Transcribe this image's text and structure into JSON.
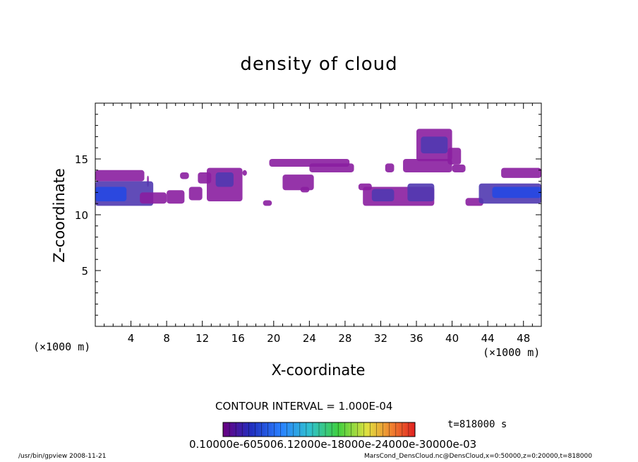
{
  "chart_data": {
    "type": "heatmap",
    "title": "density of cloud",
    "xlabel": "X-coordinate",
    "ylabel": "Z-coordinate",
    "x_unit_left": "(×1000 m)",
    "x_unit_right": "(×1000 m)",
    "xlim": [
      0,
      50
    ],
    "ylim": [
      0,
      20
    ],
    "xticks": [
      4,
      8,
      12,
      16,
      20,
      24,
      28,
      32,
      36,
      40,
      44,
      48
    ],
    "yticks": [
      5,
      10,
      15
    ],
    "contour_interval": "CONTOUR INTERVAL = 1.000E-04",
    "time": "t=818000 s",
    "colorbar_labels": "0.10000e-605006.12000e-18000e-24000e-30000e-03",
    "colors": {
      "low": "#8a1ea0",
      "mid": "#5038b0",
      "high": "#2848e0",
      "peak": "#2a6cf0",
      "grid": "#000000",
      "background": "#ffffff"
    },
    "cloud_regions": [
      {
        "x": [
          0.0,
          5.5
        ],
        "z": [
          13.0,
          14.0
        ],
        "level": 1
      },
      {
        "x": [
          5.8,
          6.0
        ],
        "z": [
          12.5,
          13.5
        ],
        "level": 1
      },
      {
        "x": [
          0.0,
          6.5
        ],
        "z": [
          10.8,
          13.0
        ],
        "level": 2
      },
      {
        "x": [
          0.0,
          3.5
        ],
        "z": [
          11.2,
          12.5
        ],
        "level": 3
      },
      {
        "x": [
          5.0,
          8.0
        ],
        "z": [
          11.0,
          12.0
        ],
        "level": 1
      },
      {
        "x": [
          8.0,
          10.0
        ],
        "z": [
          11.0,
          12.2
        ],
        "level": 1
      },
      {
        "x": [
          9.5,
          10.5
        ],
        "z": [
          13.2,
          13.8
        ],
        "level": 1
      },
      {
        "x": [
          10.5,
          12.0
        ],
        "z": [
          11.3,
          12.5
        ],
        "level": 1
      },
      {
        "x": [
          11.5,
          13.0
        ],
        "z": [
          12.8,
          13.8
        ],
        "level": 1
      },
      {
        "x": [
          12.5,
          16.5
        ],
        "z": [
          11.2,
          14.2
        ],
        "level": 1
      },
      {
        "x": [
          13.5,
          15.5
        ],
        "z": [
          12.5,
          13.8
        ],
        "level": 2
      },
      {
        "x": [
          16.5,
          17.0
        ],
        "z": [
          13.5,
          14.0
        ],
        "level": 1
      },
      {
        "x": [
          18.8,
          19.8
        ],
        "z": [
          10.8,
          11.3
        ],
        "level": 1
      },
      {
        "x": [
          19.5,
          28.5
        ],
        "z": [
          14.3,
          15.0
        ],
        "level": 1
      },
      {
        "x": [
          24.0,
          29.0
        ],
        "z": [
          13.8,
          14.6
        ],
        "level": 1
      },
      {
        "x": [
          21.0,
          24.5
        ],
        "z": [
          12.2,
          13.6
        ],
        "level": 1
      },
      {
        "x": [
          23.0,
          24.0
        ],
        "z": [
          12.0,
          12.5
        ],
        "level": 1
      },
      {
        "x": [
          29.5,
          31.0
        ],
        "z": [
          12.2,
          12.8
        ],
        "level": 1
      },
      {
        "x": [
          30.0,
          38.0
        ],
        "z": [
          10.8,
          12.5
        ],
        "level": 1
      },
      {
        "x": [
          31.0,
          33.5
        ],
        "z": [
          11.2,
          12.3
        ],
        "level": 2
      },
      {
        "x": [
          35.0,
          38.0
        ],
        "z": [
          11.2,
          12.8
        ],
        "level": 2
      },
      {
        "x": [
          32.5,
          33.5
        ],
        "z": [
          13.8,
          14.6
        ],
        "level": 1
      },
      {
        "x": [
          34.5,
          40.0
        ],
        "z": [
          13.8,
          15.0
        ],
        "level": 1
      },
      {
        "x": [
          36.0,
          40.0
        ],
        "z": [
          14.8,
          17.7
        ],
        "level": 1
      },
      {
        "x": [
          36.5,
          39.5
        ],
        "z": [
          15.5,
          17.0
        ],
        "level": 2
      },
      {
        "x": [
          39.5,
          41.0
        ],
        "z": [
          14.5,
          16.0
        ],
        "level": 1
      },
      {
        "x": [
          40.0,
          41.5
        ],
        "z": [
          13.8,
          14.5
        ],
        "level": 1
      },
      {
        "x": [
          41.5,
          43.5
        ],
        "z": [
          10.8,
          11.5
        ],
        "level": 1
      },
      {
        "x": [
          43.0,
          50.0
        ],
        "z": [
          11.0,
          12.8
        ],
        "level": 2
      },
      {
        "x": [
          44.5,
          50.0
        ],
        "z": [
          11.5,
          12.5
        ],
        "level": 3
      },
      {
        "x": [
          45.5,
          50.0
        ],
        "z": [
          13.3,
          14.2
        ],
        "level": 1
      }
    ]
  },
  "footer": {
    "left": "/usr/bin/gpview   2008-11-21",
    "right": "MarsCond_DensCloud.nc@DensCloud,x=0:50000,z=0:20000,t=818000"
  }
}
